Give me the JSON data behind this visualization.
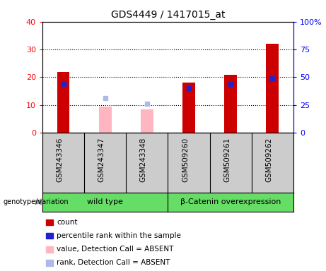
{
  "title": "GDS4449 / 1417015_at",
  "samples": [
    "GSM243346",
    "GSM243347",
    "GSM243348",
    "GSM509260",
    "GSM509261",
    "GSM509262"
  ],
  "count_values": [
    22,
    null,
    null,
    18,
    21,
    32
  ],
  "rank_values": [
    17.5,
    null,
    null,
    16,
    17.5,
    19.5
  ],
  "absent_value": [
    null,
    9.5,
    8.5,
    null,
    null,
    null
  ],
  "absent_rank": [
    null,
    12.5,
    10.5,
    null,
    null,
    null
  ],
  "ylim_left": [
    0,
    40
  ],
  "ylim_right": [
    0,
    100
  ],
  "yticks_left": [
    0,
    10,
    20,
    30,
    40
  ],
  "yticks_right": [
    0,
    25,
    50,
    75,
    100
  ],
  "ylabel_right_labels": [
    "0",
    "25",
    "50",
    "75",
    "100%"
  ],
  "ylabel_left_labels": [
    "0",
    "10",
    "20",
    "30",
    "40"
  ],
  "count_color": "#cc0000",
  "rank_color": "#2222cc",
  "absent_value_color": "#ffb6c1",
  "absent_rank_color": "#b0b8e8",
  "label_bg_color": "#cccccc",
  "group_bg_color": "#66dd66",
  "wild_type_label": "wild type",
  "overexp_label": "β-Catenin overexpression",
  "genotype_label": "genotype/variation",
  "legend_items": [
    {
      "color": "#cc0000",
      "label": "count"
    },
    {
      "color": "#2222cc",
      "label": "percentile rank within the sample"
    },
    {
      "color": "#ffb6c1",
      "label": "value, Detection Call = ABSENT"
    },
    {
      "color": "#b0b8e8",
      "label": "rank, Detection Call = ABSENT"
    }
  ]
}
